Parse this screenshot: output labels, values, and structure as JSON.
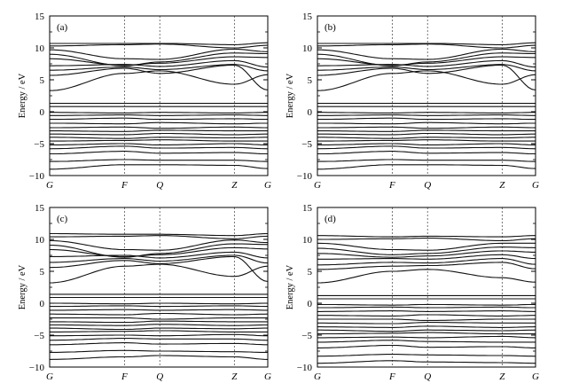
{
  "chart_data": [
    {
      "type": "line",
      "panel_label": "(a)",
      "ylabel": "Energy / eV",
      "ylim": [
        -10,
        15
      ],
      "yticks": [
        "15",
        "10",
        "5",
        "0",
        "-5",
        "-10"
      ],
      "kpoints": [
        "G",
        "F",
        "Q",
        "Z",
        "G"
      ],
      "bands": [
        {
          "name": "b1",
          "y": [
            -9.0,
            -8.3,
            -8.3,
            -8.4,
            -8.9
          ]
        },
        {
          "name": "b2",
          "y": [
            -7.8,
            -7.5,
            -7.6,
            -7.6,
            -7.8
          ]
        },
        {
          "name": "b3",
          "y": [
            -6.6,
            -6.2,
            -6.5,
            -6.4,
            -6.6
          ]
        },
        {
          "name": "b4",
          "y": [
            -5.8,
            -5.4,
            -5.7,
            -5.6,
            -5.8
          ]
        },
        {
          "name": "b5",
          "y": [
            -5.2,
            -5.0,
            -5.2,
            -5.0,
            -5.2
          ]
        },
        {
          "name": "b6",
          "y": [
            -4.6,
            -4.5,
            -4.4,
            -4.6,
            -4.6
          ]
        },
        {
          "name": "b7",
          "y": [
            -4.0,
            -4.2,
            -4.0,
            -4.1,
            -4.0
          ]
        },
        {
          "name": "b8",
          "y": [
            -3.5,
            -3.6,
            -3.4,
            -3.6,
            -3.5
          ]
        },
        {
          "name": "b9",
          "y": [
            -3.0,
            -3.1,
            -2.9,
            -3.0,
            -3.0
          ]
        },
        {
          "name": "b10",
          "y": [
            -2.5,
            -2.4,
            -2.6,
            -2.4,
            -2.5
          ]
        },
        {
          "name": "b11",
          "y": [
            -1.8,
            -1.9,
            -1.7,
            -1.9,
            -1.8
          ]
        },
        {
          "name": "b12",
          "y": [
            -1.2,
            -1.0,
            -1.2,
            -1.1,
            -1.2
          ]
        },
        {
          "name": "b13",
          "y": [
            -0.6,
            -0.5,
            -0.6,
            -0.5,
            -0.6
          ]
        },
        {
          "name": "b14",
          "y": [
            -0.1,
            -0.2,
            -0.1,
            -0.2,
            -0.1
          ]
        },
        {
          "name": "b15",
          "y": [
            0.8,
            0.8,
            0.8,
            0.8,
            0.8
          ]
        },
        {
          "name": "b16",
          "y": [
            1.3,
            1.3,
            1.3,
            1.3,
            1.3
          ]
        },
        {
          "name": "b17",
          "y": [
            3.3,
            6.0,
            6.4,
            4.3,
            5.8
          ]
        },
        {
          "name": "b18",
          "y": [
            5.7,
            6.8,
            6.0,
            7.3,
            3.4
          ]
        },
        {
          "name": "b19",
          "y": [
            6.5,
            7.0,
            6.6,
            7.4,
            6.4
          ]
        },
        {
          "name": "b20",
          "y": [
            7.2,
            7.4,
            7.1,
            8.0,
            7.0
          ]
        },
        {
          "name": "b21",
          "y": [
            8.3,
            7.3,
            7.6,
            8.6,
            8.5
          ]
        },
        {
          "name": "b22",
          "y": [
            9.0,
            7.2,
            7.8,
            9.2,
            9.1
          ]
        },
        {
          "name": "b23",
          "y": [
            9.7,
            8.3,
            8.2,
            9.8,
            9.4
          ]
        },
        {
          "name": "b24",
          "y": [
            10.3,
            10.5,
            10.6,
            10.0,
            10.4
          ]
        },
        {
          "name": "b25",
          "y": [
            10.7,
            10.7,
            10.7,
            10.5,
            10.8
          ]
        }
      ]
    },
    {
      "type": "line",
      "panel_label": "(b)",
      "ylabel": "Energy / eV",
      "ylim": [
        -10,
        15
      ],
      "yticks": [
        "15",
        "10",
        "5",
        "0",
        "-5",
        "-10"
      ],
      "kpoints": [
        "G",
        "F",
        "Q",
        "Z",
        "G"
      ],
      "bands": [
        {
          "name": "b1",
          "y": [
            -9.0,
            -8.3,
            -8.3,
            -8.4,
            -8.9
          ]
        },
        {
          "name": "b2",
          "y": [
            -7.8,
            -7.5,
            -7.6,
            -7.6,
            -7.8
          ]
        },
        {
          "name": "b3",
          "y": [
            -6.6,
            -6.2,
            -6.5,
            -6.4,
            -6.6
          ]
        },
        {
          "name": "b4",
          "y": [
            -5.8,
            -5.4,
            -5.7,
            -5.6,
            -5.8
          ]
        },
        {
          "name": "b5",
          "y": [
            -5.2,
            -5.0,
            -5.2,
            -5.0,
            -5.2
          ]
        },
        {
          "name": "b6",
          "y": [
            -4.6,
            -4.5,
            -4.4,
            -4.6,
            -4.6
          ]
        },
        {
          "name": "b7",
          "y": [
            -4.0,
            -4.2,
            -4.0,
            -4.1,
            -4.0
          ]
        },
        {
          "name": "b8",
          "y": [
            -3.5,
            -3.6,
            -3.4,
            -3.6,
            -3.5
          ]
        },
        {
          "name": "b9",
          "y": [
            -3.0,
            -3.1,
            -2.9,
            -3.0,
            -3.0
          ]
        },
        {
          "name": "b10",
          "y": [
            -2.5,
            -2.4,
            -2.6,
            -2.4,
            -2.5
          ]
        },
        {
          "name": "b11",
          "y": [
            -1.8,
            -1.9,
            -1.7,
            -1.9,
            -1.8
          ]
        },
        {
          "name": "b12",
          "y": [
            -1.2,
            -1.0,
            -1.2,
            -1.1,
            -1.2
          ]
        },
        {
          "name": "b13",
          "y": [
            -0.6,
            -0.5,
            -0.6,
            -0.5,
            -0.6
          ]
        },
        {
          "name": "b14",
          "y": [
            -0.1,
            -0.2,
            -0.1,
            -0.2,
            -0.1
          ]
        },
        {
          "name": "b15",
          "y": [
            0.8,
            0.8,
            0.8,
            0.8,
            0.8
          ]
        },
        {
          "name": "b16",
          "y": [
            1.3,
            1.3,
            1.3,
            1.3,
            1.3
          ]
        },
        {
          "name": "b17",
          "y": [
            3.3,
            6.0,
            6.4,
            4.3,
            5.8
          ]
        },
        {
          "name": "b18",
          "y": [
            5.7,
            6.8,
            6.0,
            7.3,
            3.4
          ]
        },
        {
          "name": "b19",
          "y": [
            6.5,
            7.0,
            6.6,
            7.4,
            6.4
          ]
        },
        {
          "name": "b20",
          "y": [
            7.2,
            7.4,
            7.1,
            8.0,
            7.0
          ]
        },
        {
          "name": "b21",
          "y": [
            8.3,
            7.3,
            7.6,
            8.6,
            8.5
          ]
        },
        {
          "name": "b22",
          "y": [
            9.0,
            7.2,
            7.8,
            9.2,
            9.1
          ]
        },
        {
          "name": "b23",
          "y": [
            9.7,
            8.3,
            8.2,
            9.8,
            9.4
          ]
        },
        {
          "name": "b24",
          "y": [
            10.3,
            10.5,
            10.6,
            10.0,
            10.4
          ]
        },
        {
          "name": "b25",
          "y": [
            10.7,
            10.7,
            10.7,
            10.5,
            10.8
          ]
        }
      ]
    },
    {
      "type": "line",
      "panel_label": "(c)",
      "ylabel": "Energy / eV",
      "ylim": [
        -10,
        15
      ],
      "yticks": [
        "15",
        "10",
        "5",
        "0",
        "-5",
        "-10"
      ],
      "kpoints": [
        "G",
        "F",
        "Q",
        "Z",
        "G"
      ],
      "bands": [
        {
          "name": "b1",
          "y": [
            -8.8,
            -8.4,
            -8.2,
            -8.4,
            -8.8
          ]
        },
        {
          "name": "b2",
          "y": [
            -7.7,
            -7.4,
            -7.5,
            -7.6,
            -7.7
          ]
        },
        {
          "name": "b3",
          "y": [
            -6.5,
            -6.2,
            -6.4,
            -6.3,
            -6.5
          ]
        },
        {
          "name": "b4",
          "y": [
            -5.8,
            -5.5,
            -5.6,
            -5.6,
            -5.8
          ]
        },
        {
          "name": "b5",
          "y": [
            -5.1,
            -5.0,
            -5.1,
            -4.9,
            -5.1
          ]
        },
        {
          "name": "b6",
          "y": [
            -4.5,
            -4.4,
            -4.3,
            -4.5,
            -4.5
          ]
        },
        {
          "name": "b7",
          "y": [
            -3.9,
            -4.1,
            -3.9,
            -4.0,
            -3.9
          ]
        },
        {
          "name": "b8",
          "y": [
            -3.4,
            -3.5,
            -3.3,
            -3.5,
            -3.4
          ]
        },
        {
          "name": "b9",
          "y": [
            -2.9,
            -3.0,
            -2.8,
            -2.9,
            -2.9
          ]
        },
        {
          "name": "b10",
          "y": [
            -2.3,
            -2.3,
            -2.5,
            -2.3,
            -2.3
          ]
        },
        {
          "name": "b11",
          "y": [
            -1.7,
            -1.8,
            -1.6,
            -1.8,
            -1.7
          ]
        },
        {
          "name": "b12",
          "y": [
            -1.1,
            -1.0,
            -1.1,
            -1.0,
            -1.1
          ]
        },
        {
          "name": "b13",
          "y": [
            -0.5,
            -0.4,
            -0.5,
            -0.4,
            -0.5
          ]
        },
        {
          "name": "b14",
          "y": [
            0.0,
            -0.1,
            0.0,
            -0.1,
            0.0
          ]
        },
        {
          "name": "b15",
          "y": [
            0.9,
            0.9,
            0.9,
            0.9,
            0.9
          ]
        },
        {
          "name": "b16",
          "y": [
            1.4,
            1.4,
            1.4,
            1.4,
            1.4
          ]
        },
        {
          "name": "b17",
          "y": [
            3.2,
            5.8,
            6.1,
            4.2,
            5.8
          ]
        },
        {
          "name": "b18",
          "y": [
            5.6,
            6.7,
            6.2,
            7.3,
            3.4
          ]
        },
        {
          "name": "b19",
          "y": [
            6.4,
            7.0,
            6.6,
            7.5,
            6.3
          ]
        },
        {
          "name": "b20",
          "y": [
            7.3,
            7.5,
            7.1,
            8.0,
            7.1
          ]
        },
        {
          "name": "b21",
          "y": [
            8.4,
            7.3,
            7.6,
            8.7,
            8.5
          ]
        },
        {
          "name": "b22",
          "y": [
            9.1,
            7.2,
            7.8,
            9.3,
            9.2
          ]
        },
        {
          "name": "b23",
          "y": [
            9.8,
            8.4,
            8.3,
            9.9,
            9.5
          ]
        },
        {
          "name": "b24",
          "y": [
            10.4,
            10.5,
            10.6,
            10.1,
            10.5
          ]
        },
        {
          "name": "b25",
          "y": [
            10.9,
            10.8,
            10.8,
            10.6,
            10.9
          ]
        }
      ]
    },
    {
      "type": "line",
      "panel_label": "(d)",
      "ylabel": "Energy / eV",
      "ylim": [
        -10,
        15
      ],
      "yticks": [
        "15",
        "10",
        "5",
        "0",
        "-5",
        "-10"
      ],
      "kpoints": [
        "G",
        "F",
        "Q",
        "Z",
        "G"
      ],
      "bands": [
        {
          "name": "b1",
          "y": [
            -9.4,
            -9.0,
            -9.2,
            -9.3,
            -9.4
          ]
        },
        {
          "name": "b2",
          "y": [
            -8.3,
            -8.0,
            -8.1,
            -8.2,
            -8.3
          ]
        },
        {
          "name": "b3",
          "y": [
            -7.0,
            -6.6,
            -6.9,
            -6.8,
            -7.0
          ]
        },
        {
          "name": "b4",
          "y": [
            -6.1,
            -5.8,
            -6.0,
            -6.1,
            -6.1
          ]
        },
        {
          "name": "b5",
          "y": [
            -5.4,
            -5.3,
            -5.4,
            -5.2,
            -5.4
          ]
        },
        {
          "name": "b6",
          "y": [
            -4.8,
            -4.7,
            -4.6,
            -4.8,
            -4.8
          ]
        },
        {
          "name": "b7",
          "y": [
            -4.2,
            -4.4,
            -4.2,
            -4.3,
            -4.2
          ]
        },
        {
          "name": "b8",
          "y": [
            -3.7,
            -3.8,
            -3.6,
            -3.8,
            -3.7
          ]
        },
        {
          "name": "b9",
          "y": [
            -3.1,
            -3.2,
            -3.0,
            -3.1,
            -3.1
          ]
        },
        {
          "name": "b10",
          "y": [
            -2.5,
            -2.5,
            -2.7,
            -2.5,
            -2.5
          ]
        },
        {
          "name": "b11",
          "y": [
            -1.9,
            -2.0,
            -1.8,
            -2.0,
            -1.9
          ]
        },
        {
          "name": "b12",
          "y": [
            -1.3,
            -1.2,
            -1.3,
            -1.2,
            -1.3
          ]
        },
        {
          "name": "b13",
          "y": [
            -0.7,
            -0.6,
            -0.7,
            -0.6,
            -0.7
          ]
        },
        {
          "name": "b14",
          "y": [
            -0.2,
            -0.3,
            -0.2,
            -0.3,
            -0.2
          ]
        },
        {
          "name": "b15",
          "y": [
            0.7,
            0.7,
            0.7,
            0.7,
            0.7
          ]
        },
        {
          "name": "b16",
          "y": [
            1.2,
            1.2,
            1.2,
            1.2,
            1.2
          ]
        },
        {
          "name": "b17",
          "y": [
            3.2,
            5.0,
            5.3,
            4.0,
            3.3
          ]
        },
        {
          "name": "b18",
          "y": [
            5.3,
            5.8,
            5.9,
            6.4,
            5.4
          ]
        },
        {
          "name": "b19",
          "y": [
            6.0,
            6.4,
            6.3,
            7.0,
            6.1
          ]
        },
        {
          "name": "b20",
          "y": [
            6.9,
            7.0,
            6.9,
            7.6,
            7.0
          ]
        },
        {
          "name": "b21",
          "y": [
            7.8,
            7.2,
            7.4,
            8.2,
            8.0
          ]
        },
        {
          "name": "b22",
          "y": [
            8.6,
            7.6,
            7.8,
            8.8,
            8.7
          ]
        },
        {
          "name": "b23",
          "y": [
            9.4,
            8.4,
            8.3,
            9.4,
            9.4
          ]
        },
        {
          "name": "b24",
          "y": [
            10.0,
            10.1,
            10.2,
            9.8,
            10.1
          ]
        },
        {
          "name": "b25",
          "y": [
            10.6,
            10.4,
            10.5,
            10.4,
            10.6
          ]
        }
      ]
    }
  ]
}
